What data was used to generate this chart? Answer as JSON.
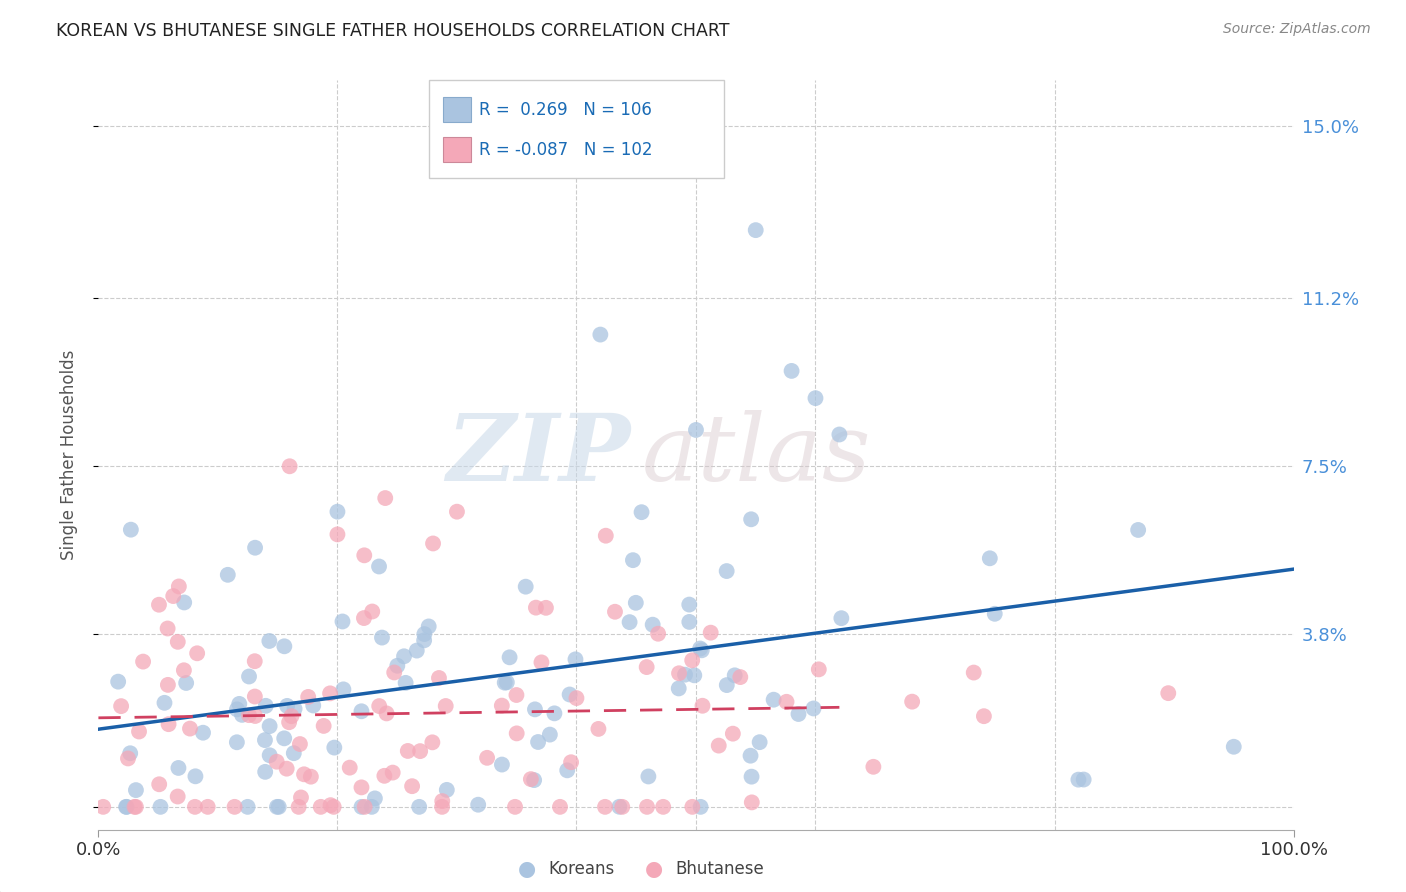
{
  "title": "KOREAN VS BHUTANESE SINGLE FATHER HOUSEHOLDS CORRELATION CHART",
  "source": "Source: ZipAtlas.com",
  "ylabel": "Single Father Households",
  "xlim": [
    0,
    1.0
  ],
  "ylim": [
    -0.005,
    0.16
  ],
  "ytick_positions": [
    0.0,
    0.038,
    0.075,
    0.112,
    0.15
  ],
  "ytick_labels": [
    "",
    "3.8%",
    "7.5%",
    "11.2%",
    "15.0%"
  ],
  "korean_R": 0.269,
  "korean_N": 106,
  "bhutanese_R": -0.087,
  "bhutanese_N": 102,
  "korean_color": "#aac4e0",
  "bhutanese_color": "#f4a8b8",
  "korean_line_color": "#1a5fa8",
  "bhutanese_line_color": "#d04060",
  "legend_label_korean": "Koreans",
  "legend_label_bhutanese": "Bhutanese",
  "watermark_zip": "ZIP",
  "watermark_atlas": "atlas",
  "background_color": "#ffffff",
  "grid_color": "#cccccc",
  "title_color": "#222222",
  "axis_label_color": "#555555",
  "right_tick_color": "#4a90d9",
  "legend_text_color": "#1a6bb5"
}
